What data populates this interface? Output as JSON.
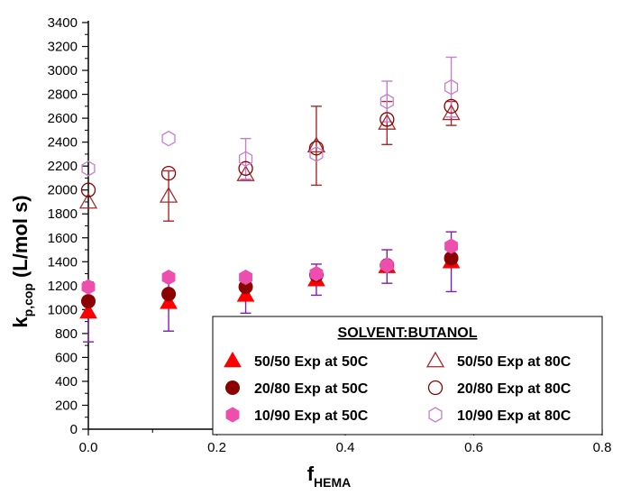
{
  "chart_data": {
    "type": "scatter",
    "xlabel": {
      "main": "f",
      "sub": "HEMA"
    },
    "ylabel": {
      "main": "k",
      "sub": "p,cop",
      "unit": "(L/mol s)"
    },
    "xlim": [
      0,
      0.8
    ],
    "ylim": [
      0,
      3400
    ],
    "xticks": [
      "0.0",
      "0.2",
      "0.4",
      "0.6",
      "0.8"
    ],
    "yticks": [
      "0",
      "200",
      "400",
      "600",
      "800",
      "1000",
      "1200",
      "1400",
      "1600",
      "1800",
      "2000",
      "2200",
      "2400",
      "2600",
      "2800",
      "3000",
      "3200",
      "3400"
    ],
    "grid": false,
    "legend": {
      "placement": "bottom-right",
      "title": "SOLVENT:BUTANOL"
    },
    "series": [
      {
        "name": "50/50 Exp at 50C",
        "marker": "triangle",
        "filled": true,
        "color": "#ff0000",
        "errcolor": "#7f1fa8",
        "x": [
          0.0,
          0.125,
          0.245,
          0.355,
          0.465,
          0.565
        ],
        "y": [
          980,
          1060,
          1120,
          1250,
          1360,
          1400
        ],
        "err": [
          250,
          240,
          150,
          130,
          140,
          250
        ]
      },
      {
        "name": "20/80 Exp at 50C",
        "marker": "circle",
        "filled": true,
        "color": "#8b0000",
        "errcolor": "#7f1fa8",
        "x": [
          0.0,
          0.125,
          0.245,
          0.355,
          0.465,
          0.565
        ],
        "y": [
          1070,
          1130,
          1190,
          1290,
          1370,
          1430
        ],
        "err": [
          0,
          0,
          0,
          0,
          0,
          0
        ]
      },
      {
        "name": "10/90 Exp at 50C",
        "marker": "hexagon",
        "filled": true,
        "color": "#ee4fae",
        "errcolor": "#7f1fa8",
        "x": [
          0.0,
          0.125,
          0.245,
          0.355,
          0.465,
          0.565
        ],
        "y": [
          1190,
          1270,
          1270,
          1300,
          1370,
          1530
        ],
        "err": [
          0,
          0,
          0,
          0,
          0,
          0
        ]
      },
      {
        "name": "50/50 Exp at 80C",
        "marker": "triangle",
        "filled": false,
        "color": "#a52a2a",
        "errcolor": "#a52a2a",
        "x": [
          0.0,
          0.125,
          0.245,
          0.355,
          0.465,
          0.565
        ],
        "y": [
          1900,
          1950,
          2130,
          2370,
          2560,
          2640
        ],
        "err": [
          0,
          210,
          0,
          330,
          180,
          100
        ]
      },
      {
        "name": "20/80 Exp at 80C",
        "marker": "circle",
        "filled": false,
        "color": "#8b0000",
        "errcolor": "#8b0000",
        "x": [
          0.0,
          0.125,
          0.245,
          0.355,
          0.465,
          0.565
        ],
        "y": [
          2000,
          2140,
          2180,
          2350,
          2590,
          2700
        ],
        "err": [
          0,
          0,
          0,
          0,
          0,
          0
        ]
      },
      {
        "name": "10/90 Exp at 80C",
        "marker": "hexagon",
        "filled": false,
        "color": "#c77dce",
        "errcolor": "#c77dce",
        "x": [
          0.0,
          0.125,
          0.245,
          0.355,
          0.465,
          0.565
        ],
        "y": [
          2180,
          2430,
          2260,
          2300,
          2740,
          2860
        ],
        "err": [
          0,
          0,
          170,
          0,
          170,
          250
        ]
      }
    ]
  }
}
